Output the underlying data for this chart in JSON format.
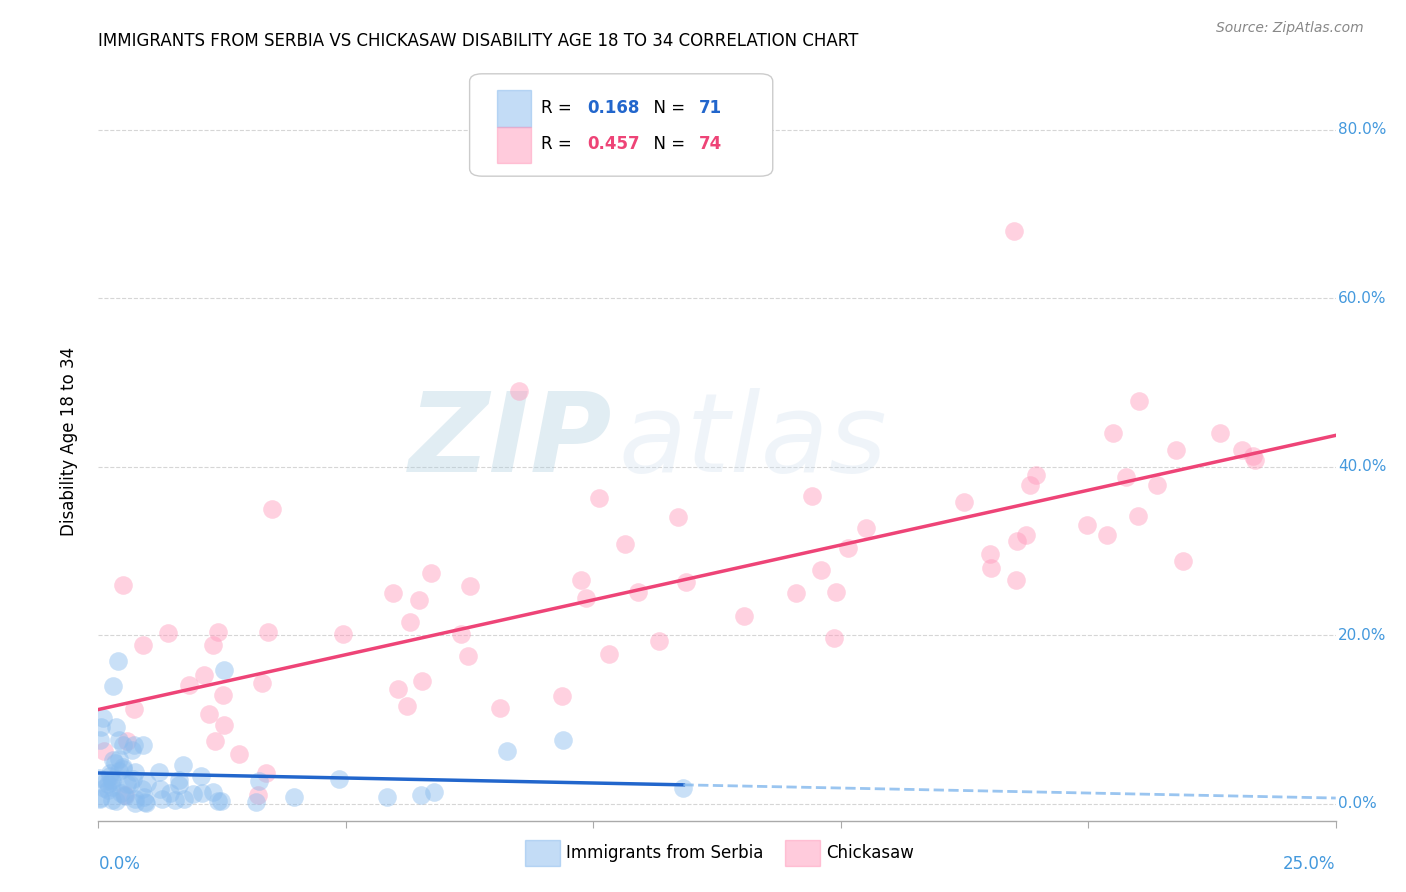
{
  "title": "IMMIGRANTS FROM SERBIA VS CHICKASAW DISABILITY AGE 18 TO 34 CORRELATION CHART",
  "source": "Source: ZipAtlas.com",
  "ylabel": "Disability Age 18 to 34",
  "ylabel_ticks": [
    "0.0%",
    "20.0%",
    "40.0%",
    "60.0%",
    "80.0%"
  ],
  "ylabel_tick_vals": [
    0.0,
    0.2,
    0.4,
    0.6,
    0.8
  ],
  "xlim": [
    0.0,
    0.25
  ],
  "ylim": [
    -0.02,
    0.88
  ],
  "color_blue": "#88BBEE",
  "color_pink": "#FF99BB",
  "color_trendline_blue": "#2266CC",
  "color_trendline_pink": "#EE4477",
  "watermark_zip": "ZIP",
  "watermark_atlas": "atlas",
  "legend_r1_label": "R = ",
  "legend_r1_val": "0.168",
  "legend_n1_label": "  N = ",
  "legend_n1_val": "71",
  "legend_r2_label": "R = ",
  "legend_r2_val": "0.457",
  "legend_n2_label": "  N = ",
  "legend_n2_val": "74",
  "serbia_seed": 1234,
  "chickasaw_seed": 5678
}
